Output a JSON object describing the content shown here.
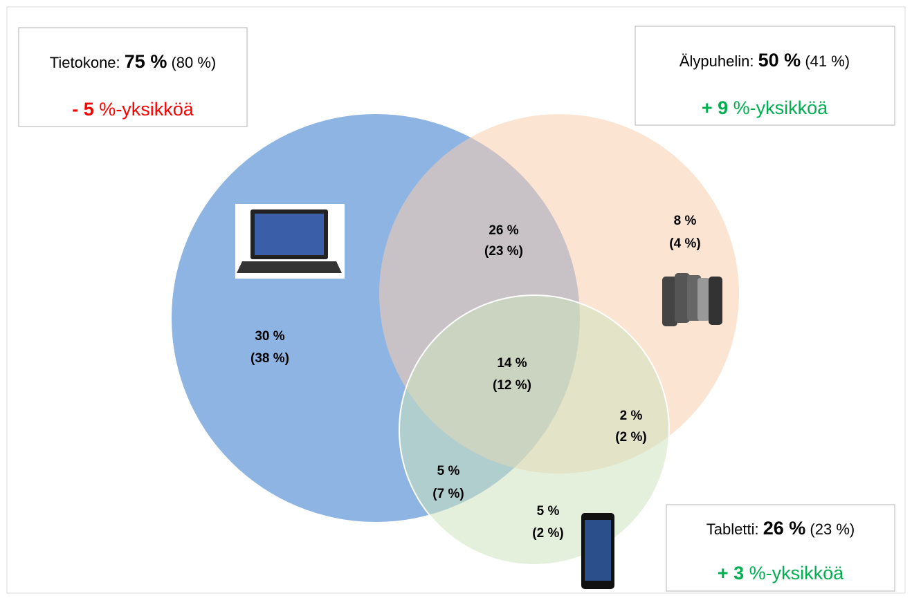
{
  "sets": [
    {
      "name": "Tietokone:",
      "share": "75 %",
      "previous": "(80 %)",
      "change": "- 5",
      "change_unit": "%-yksikköä"
    },
    {
      "name": "Älypuhelin:",
      "share": "50 %",
      "previous": "(41 %)",
      "change": "+ 9",
      "change_unit": "%-yksikköä"
    },
    {
      "name": "Tabletti:",
      "share": "26 %",
      "previous": "(23 %)",
      "change": "+ 3",
      "change_unit": "%-yksikköä"
    }
  ],
  "regions": [
    {
      "value": "30 %",
      "previous": "(38 %)"
    },
    {
      "value": "26 %",
      "previous": "(23 %)"
    },
    {
      "value": "8 %",
      "previous": "(4 %)"
    },
    {
      "value": "14 %",
      "previous": "(12 %)"
    },
    {
      "value": "2 %",
      "previous": "(2 %)"
    },
    {
      "value": "5 %",
      "previous": "(7 %)"
    },
    {
      "value": "5 %",
      "previous": "(2 %)"
    }
  ]
}
